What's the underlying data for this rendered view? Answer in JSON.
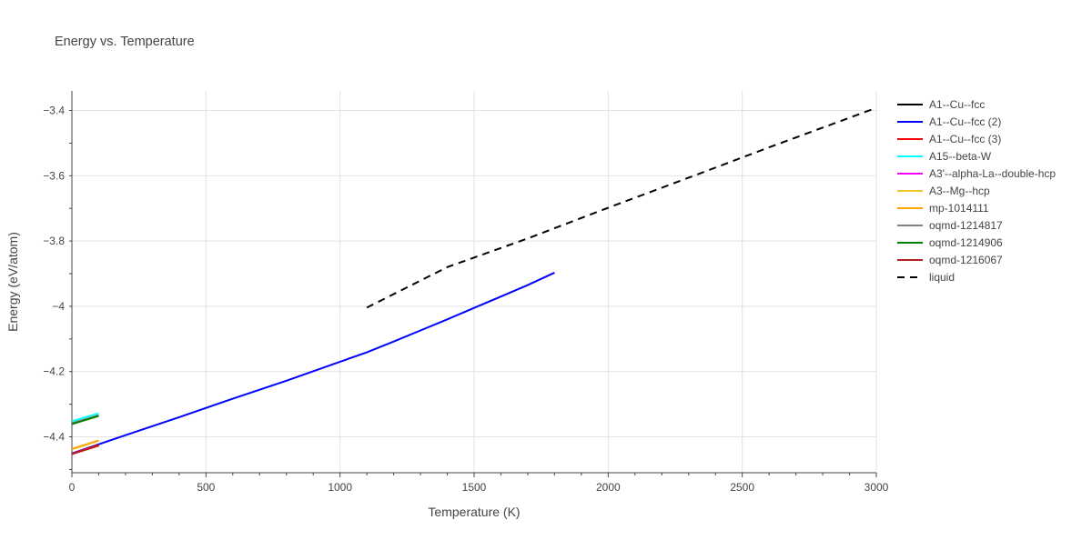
{
  "chart_data": {
    "type": "line",
    "title": "Energy vs. Temperature",
    "xlabel": "Temperature (K)",
    "ylabel": "Energy (eV/atom)",
    "xlim": [
      0,
      3000
    ],
    "ylim": [
      -4.51,
      -3.34
    ],
    "x_ticks": [
      0,
      500,
      1000,
      1500,
      2000,
      2500,
      3000
    ],
    "x_tick_labels": [
      "0",
      "500",
      "1000",
      "1500",
      "2000",
      "2500",
      "3000"
    ],
    "y_ticks": [
      -3.4,
      -3.6,
      -3.8,
      -4.0,
      -4.2,
      -4.4
    ],
    "y_tick_labels": [
      "−3.4",
      "−3.6",
      "−3.8",
      "−4",
      "−4.2",
      "−4.4"
    ],
    "grid": true,
    "legend_position": "right",
    "series": [
      {
        "name": "A1--Cu--fcc",
        "color": "#000000",
        "dash": "solid",
        "x": [
          0,
          100
        ],
        "y": [
          -4.451,
          -4.427
        ]
      },
      {
        "name": "A1--Cu--fcc (2)",
        "color": "#0000ff",
        "dash": "solid",
        "x": [
          0,
          200,
          400,
          600,
          800,
          1000,
          1100,
          1200,
          1300,
          1400,
          1500,
          1600,
          1700,
          1800
        ],
        "y": [
          -4.451,
          -4.395,
          -4.34,
          -4.283,
          -4.228,
          -4.17,
          -4.141,
          -4.108,
          -4.074,
          -4.04,
          -4.005,
          -3.97,
          -3.935,
          -3.897
        ]
      },
      {
        "name": "A1--Cu--fcc (3)",
        "color": "#ff0000",
        "dash": "solid",
        "x": [
          0,
          100
        ],
        "y": [
          -4.452,
          -4.425
        ]
      },
      {
        "name": "A15--beta-W",
        "color": "#00ffff",
        "dash": "solid",
        "x": [
          0,
          100
        ],
        "y": [
          -4.352,
          -4.328
        ]
      },
      {
        "name": "A3'--alpha-La--double-hcp",
        "color": "#ff00ff",
        "dash": "solid",
        "x": [
          0,
          100
        ],
        "y": [
          -4.359,
          -4.335
        ]
      },
      {
        "name": "A3--Mg--hcp",
        "color": "#f4c430",
        "dash": "solid",
        "x": [
          0,
          100
        ],
        "y": [
          -4.438,
          -4.412
        ]
      },
      {
        "name": "mp-1014111",
        "color": "#ffa500",
        "dash": "solid",
        "x": [
          0,
          100
        ],
        "y": [
          -4.437,
          -4.411
        ]
      },
      {
        "name": "oqmd-1214817",
        "color": "#808080",
        "dash": "solid",
        "x": [
          0,
          100
        ],
        "y": [
          -4.358,
          -4.334
        ]
      },
      {
        "name": "oqmd-1214906",
        "color": "#008000",
        "dash": "solid",
        "x": [
          0,
          100
        ],
        "y": [
          -4.361,
          -4.336
        ]
      },
      {
        "name": "oqmd-1216067",
        "color": "#b22222",
        "dash": "solid",
        "x": [
          0,
          100
        ],
        "y": [
          -4.453,
          -4.427
        ]
      },
      {
        "name": "liquid",
        "color": "#000000",
        "dash": "dash",
        "x": [
          1100,
          1400,
          1700,
          2000,
          2300,
          2600,
          3000
        ],
        "y": [
          -4.004,
          -3.88,
          -3.792,
          -3.698,
          -3.606,
          -3.513,
          -3.392
        ]
      }
    ]
  }
}
